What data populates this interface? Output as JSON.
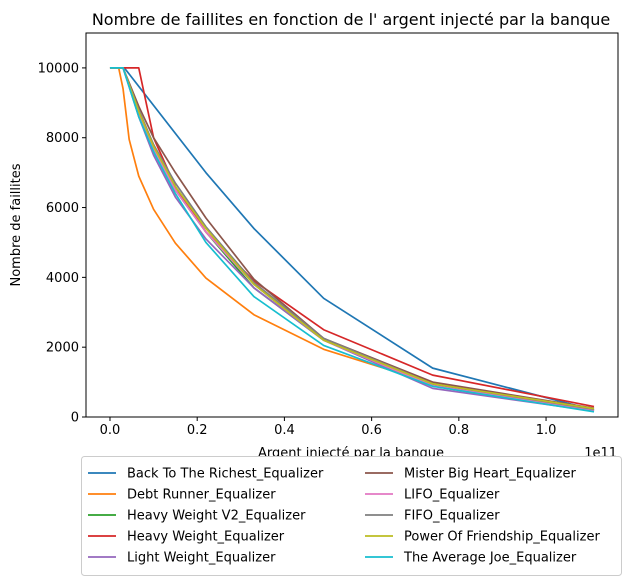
{
  "chart_data": {
    "type": "line",
    "title": "Nombre de faillites en fonction de l' argent injecté par la banque",
    "xlabel": "Argent injecté par la banque",
    "ylabel": "Nombre de faillites",
    "x_offset_label": "1e11",
    "xlim": [
      -5500000000.0,
      116500000000.0
    ],
    "ylim": [
      0,
      11000
    ],
    "x_ticks": [
      0,
      20000000000.0,
      40000000000.0,
      60000000000.0,
      80000000000.0,
      100000000000.0
    ],
    "x_tick_labels": [
      "0.0",
      "0.2",
      "0.4",
      "0.6",
      "0.8",
      "1.0"
    ],
    "y_ticks": [
      0,
      2000,
      4000,
      6000,
      8000,
      10000
    ],
    "y_tick_labels": [
      "0",
      "2000",
      "4000",
      "6000",
      "8000",
      "10000"
    ],
    "grid": false,
    "legend_position": "below-center",
    "series": [
      {
        "name": "Back To The Richest_Equalizer",
        "color": "#1f77b4",
        "x": [
          0,
          3300000000.0,
          22000000000.0,
          33000000000.0,
          49000000000.0,
          74000000000.0,
          111000000000.0
        ],
        "y": [
          10000,
          10000,
          7000,
          5400,
          3400,
          1400,
          200
        ]
      },
      {
        "name": "Debt Runner_Equalizer",
        "color": "#ff7f0e",
        "x": [
          0,
          2000000000.0,
          3000000000.0,
          4400000000.0,
          6600000000.0,
          10000000000.0,
          15000000000.0,
          22000000000.0,
          33000000000.0,
          49000000000.0,
          74000000000.0,
          111000000000.0
        ],
        "y": [
          10000,
          10000,
          9400,
          7950,
          6900,
          5950,
          4980,
          3980,
          2930,
          1940,
          960,
          210
        ]
      },
      {
        "name": "Heavy Weight V2_Equalizer",
        "color": "#2ca02c",
        "x": [
          0,
          3000000000.0,
          6600000000.0,
          10000000000.0,
          15000000000.0,
          22000000000.0,
          33000000000.0,
          49000000000.0,
          74000000000.0,
          111000000000.0
        ],
        "y": [
          10000,
          10000,
          8700,
          7800,
          6500,
          5300,
          3700,
          2200,
          920,
          180
        ]
      },
      {
        "name": "Heavy Weight_Equalizer",
        "color": "#d62728",
        "x": [
          0,
          6600000000.0,
          10000000000.0,
          15000000000.0,
          22000000000.0,
          33000000000.0,
          49000000000.0,
          74000000000.0,
          111000000000.0
        ],
        "y": [
          10000,
          10000,
          8000,
          6600,
          5300,
          3900,
          2500,
          1200,
          300
        ]
      },
      {
        "name": "Light Weight_Equalizer",
        "color": "#9467bd",
        "x": [
          0,
          3000000000.0,
          6600000000.0,
          10000000000.0,
          15000000000.0,
          22000000000.0,
          33000000000.0,
          49000000000.0,
          74000000000.0,
          111000000000.0
        ],
        "y": [
          10000,
          10000,
          8600,
          7500,
          6300,
          5100,
          3700,
          2200,
          820,
          170
        ]
      },
      {
        "name": "Mister Big Heart_Equalizer",
        "color": "#8c564b",
        "x": [
          0,
          3000000000.0,
          6600000000.0,
          10000000000.0,
          15000000000.0,
          22000000000.0,
          33000000000.0,
          49000000000.0,
          74000000000.0,
          111000000000.0
        ],
        "y": [
          10000,
          10000,
          8900,
          8000,
          7000,
          5700,
          3950,
          2250,
          1000,
          250
        ]
      },
      {
        "name": "LIFO_Equalizer",
        "color": "#e377c2",
        "x": [
          0,
          3000000000.0,
          6600000000.0,
          10000000000.0,
          15000000000.0,
          22000000000.0,
          33000000000.0,
          49000000000.0,
          74000000000.0,
          111000000000.0
        ],
        "y": [
          10000,
          10000,
          8700,
          7700,
          6500,
          5300,
          3800,
          2200,
          900,
          200
        ]
      },
      {
        "name": "FIFO_Equalizer",
        "color": "#7f7f7f",
        "x": [
          0,
          3000000000.0,
          6600000000.0,
          10000000000.0,
          15000000000.0,
          22000000000.0,
          33000000000.0,
          49000000000.0,
          74000000000.0,
          111000000000.0
        ],
        "y": [
          10000,
          10000,
          8800,
          7800,
          6700,
          5450,
          3850,
          2250,
          950,
          220
        ]
      },
      {
        "name": "Power Of Friendship_Equalizer",
        "color": "#bcbd22",
        "x": [
          0,
          3000000000.0,
          6600000000.0,
          10000000000.0,
          15000000000.0,
          22000000000.0,
          33000000000.0,
          49000000000.0,
          74000000000.0,
          111000000000.0
        ],
        "y": [
          10000,
          10000,
          8750,
          7750,
          6600,
          5400,
          3800,
          2200,
          950,
          240
        ]
      },
      {
        "name": "The Average Joe_Equalizer",
        "color": "#17becf",
        "x": [
          0,
          3000000000.0,
          6600000000.0,
          10000000000.0,
          15000000000.0,
          22000000000.0,
          33000000000.0,
          49000000000.0,
          74000000000.0,
          111000000000.0
        ],
        "y": [
          10000,
          10000,
          8600,
          7600,
          6400,
          5000,
          3450,
          2050,
          880,
          150
        ]
      }
    ]
  }
}
